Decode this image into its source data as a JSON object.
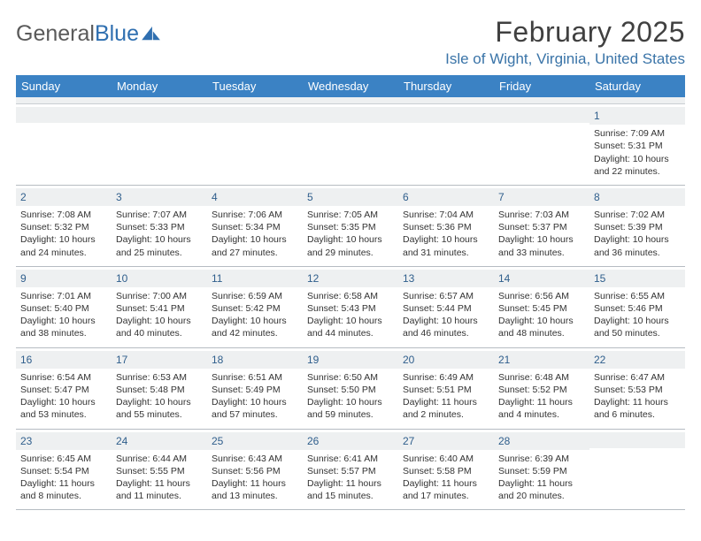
{
  "logo": {
    "text1": "General",
    "text2": "Blue"
  },
  "title": "February 2025",
  "location": "Isle of Wight, Virginia, United States",
  "colors": {
    "header_bg": "#3b82c4",
    "header_text": "#ffffff",
    "daynum_bg": "#eef0f1",
    "daynum_text": "#2f5e8c",
    "location_text": "#3a74a8",
    "body_text": "#333333",
    "border": "#b6bcc2"
  },
  "day_headers": [
    "Sunday",
    "Monday",
    "Tuesday",
    "Wednesday",
    "Thursday",
    "Friday",
    "Saturday"
  ],
  "weeks": [
    [
      {
        "empty": true
      },
      {
        "empty": true
      },
      {
        "empty": true
      },
      {
        "empty": true
      },
      {
        "empty": true
      },
      {
        "empty": true
      },
      {
        "day": "1",
        "sunrise": "Sunrise: 7:09 AM",
        "sunset": "Sunset: 5:31 PM",
        "daylight": "Daylight: 10 hours and 22 minutes."
      }
    ],
    [
      {
        "day": "2",
        "sunrise": "Sunrise: 7:08 AM",
        "sunset": "Sunset: 5:32 PM",
        "daylight": "Daylight: 10 hours and 24 minutes."
      },
      {
        "day": "3",
        "sunrise": "Sunrise: 7:07 AM",
        "sunset": "Sunset: 5:33 PM",
        "daylight": "Daylight: 10 hours and 25 minutes."
      },
      {
        "day": "4",
        "sunrise": "Sunrise: 7:06 AM",
        "sunset": "Sunset: 5:34 PM",
        "daylight": "Daylight: 10 hours and 27 minutes."
      },
      {
        "day": "5",
        "sunrise": "Sunrise: 7:05 AM",
        "sunset": "Sunset: 5:35 PM",
        "daylight": "Daylight: 10 hours and 29 minutes."
      },
      {
        "day": "6",
        "sunrise": "Sunrise: 7:04 AM",
        "sunset": "Sunset: 5:36 PM",
        "daylight": "Daylight: 10 hours and 31 minutes."
      },
      {
        "day": "7",
        "sunrise": "Sunrise: 7:03 AM",
        "sunset": "Sunset: 5:37 PM",
        "daylight": "Daylight: 10 hours and 33 minutes."
      },
      {
        "day": "8",
        "sunrise": "Sunrise: 7:02 AM",
        "sunset": "Sunset: 5:39 PM",
        "daylight": "Daylight: 10 hours and 36 minutes."
      }
    ],
    [
      {
        "day": "9",
        "sunrise": "Sunrise: 7:01 AM",
        "sunset": "Sunset: 5:40 PM",
        "daylight": "Daylight: 10 hours and 38 minutes."
      },
      {
        "day": "10",
        "sunrise": "Sunrise: 7:00 AM",
        "sunset": "Sunset: 5:41 PM",
        "daylight": "Daylight: 10 hours and 40 minutes."
      },
      {
        "day": "11",
        "sunrise": "Sunrise: 6:59 AM",
        "sunset": "Sunset: 5:42 PM",
        "daylight": "Daylight: 10 hours and 42 minutes."
      },
      {
        "day": "12",
        "sunrise": "Sunrise: 6:58 AM",
        "sunset": "Sunset: 5:43 PM",
        "daylight": "Daylight: 10 hours and 44 minutes."
      },
      {
        "day": "13",
        "sunrise": "Sunrise: 6:57 AM",
        "sunset": "Sunset: 5:44 PM",
        "daylight": "Daylight: 10 hours and 46 minutes."
      },
      {
        "day": "14",
        "sunrise": "Sunrise: 6:56 AM",
        "sunset": "Sunset: 5:45 PM",
        "daylight": "Daylight: 10 hours and 48 minutes."
      },
      {
        "day": "15",
        "sunrise": "Sunrise: 6:55 AM",
        "sunset": "Sunset: 5:46 PM",
        "daylight": "Daylight: 10 hours and 50 minutes."
      }
    ],
    [
      {
        "day": "16",
        "sunrise": "Sunrise: 6:54 AM",
        "sunset": "Sunset: 5:47 PM",
        "daylight": "Daylight: 10 hours and 53 minutes."
      },
      {
        "day": "17",
        "sunrise": "Sunrise: 6:53 AM",
        "sunset": "Sunset: 5:48 PM",
        "daylight": "Daylight: 10 hours and 55 minutes."
      },
      {
        "day": "18",
        "sunrise": "Sunrise: 6:51 AM",
        "sunset": "Sunset: 5:49 PM",
        "daylight": "Daylight: 10 hours and 57 minutes."
      },
      {
        "day": "19",
        "sunrise": "Sunrise: 6:50 AM",
        "sunset": "Sunset: 5:50 PM",
        "daylight": "Daylight: 10 hours and 59 minutes."
      },
      {
        "day": "20",
        "sunrise": "Sunrise: 6:49 AM",
        "sunset": "Sunset: 5:51 PM",
        "daylight": "Daylight: 11 hours and 2 minutes."
      },
      {
        "day": "21",
        "sunrise": "Sunrise: 6:48 AM",
        "sunset": "Sunset: 5:52 PM",
        "daylight": "Daylight: 11 hours and 4 minutes."
      },
      {
        "day": "22",
        "sunrise": "Sunrise: 6:47 AM",
        "sunset": "Sunset: 5:53 PM",
        "daylight": "Daylight: 11 hours and 6 minutes."
      }
    ],
    [
      {
        "day": "23",
        "sunrise": "Sunrise: 6:45 AM",
        "sunset": "Sunset: 5:54 PM",
        "daylight": "Daylight: 11 hours and 8 minutes."
      },
      {
        "day": "24",
        "sunrise": "Sunrise: 6:44 AM",
        "sunset": "Sunset: 5:55 PM",
        "daylight": "Daylight: 11 hours and 11 minutes."
      },
      {
        "day": "25",
        "sunrise": "Sunrise: 6:43 AM",
        "sunset": "Sunset: 5:56 PM",
        "daylight": "Daylight: 11 hours and 13 minutes."
      },
      {
        "day": "26",
        "sunrise": "Sunrise: 6:41 AM",
        "sunset": "Sunset: 5:57 PM",
        "daylight": "Daylight: 11 hours and 15 minutes."
      },
      {
        "day": "27",
        "sunrise": "Sunrise: 6:40 AM",
        "sunset": "Sunset: 5:58 PM",
        "daylight": "Daylight: 11 hours and 17 minutes."
      },
      {
        "day": "28",
        "sunrise": "Sunrise: 6:39 AM",
        "sunset": "Sunset: 5:59 PM",
        "daylight": "Daylight: 11 hours and 20 minutes."
      },
      {
        "empty": true
      }
    ]
  ]
}
